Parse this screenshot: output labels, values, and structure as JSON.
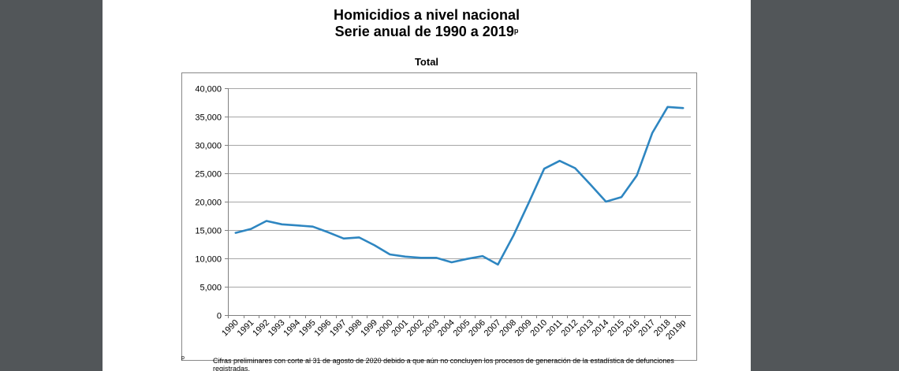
{
  "document": {
    "title_line1": "Homicidios a nivel nacional",
    "title_line2": "Serie anual de 1990 a 2019",
    "title_superscript": "p",
    "footnote_mark": "p",
    "footnote_text": "Cifras preliminares con corte al 31 de agosto de 2020 debido a que aún no concluyen los procesos de generación de la estadística de defunciones registradas."
  },
  "chart_data": {
    "type": "line",
    "title": "Total",
    "categories": [
      "1990",
      "1991",
      "1992",
      "1993",
      "1994",
      "1995",
      "1996",
      "1997",
      "1998",
      "1999",
      "2000",
      "2001",
      "2002",
      "2003",
      "2004",
      "2005",
      "2006",
      "2007",
      "2008",
      "2009",
      "2010",
      "2011",
      "2012",
      "2013",
      "2014",
      "2015",
      "2016",
      "2017",
      "2018",
      "2019p"
    ],
    "series": [
      {
        "values": [
          14500,
          15200,
          16600,
          16000,
          15800,
          15600,
          14600,
          13500,
          13700,
          12300,
          10700,
          10300,
          10100,
          10100,
          9300,
          9900,
          10400,
          8900,
          14000,
          19800,
          25800,
          27200,
          25900,
          23000,
          20000,
          20800,
          24600,
          32100,
          36700,
          36500
        ],
        "color": "#2e86c1"
      }
    ],
    "yticks": [
      "0",
      "5,000",
      "10,000",
      "15,000",
      "20,000",
      "25,000",
      "30,000",
      "35,000",
      "40,000"
    ],
    "ylim": [
      0,
      40000
    ],
    "grid": true,
    "legend": "none"
  }
}
